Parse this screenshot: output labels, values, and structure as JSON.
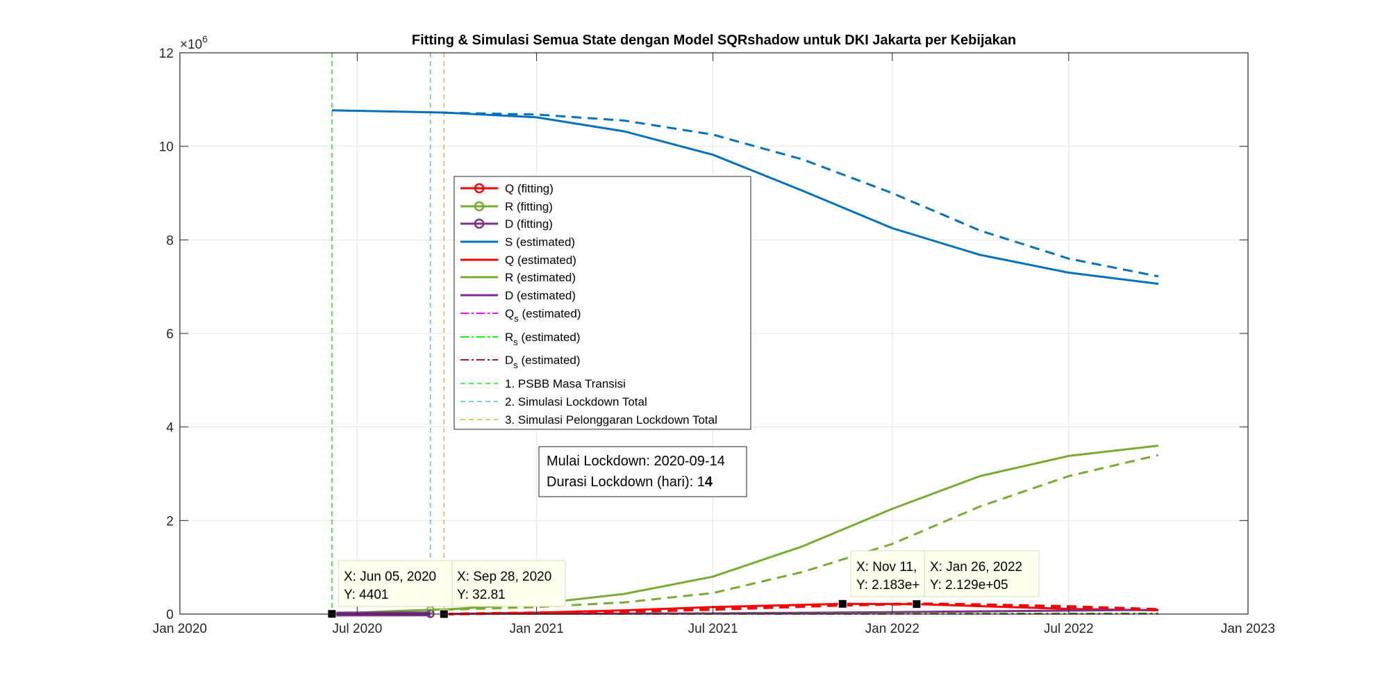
{
  "chart_data": {
    "type": "line",
    "title": "Fitting & Simulasi Semua State dengan Model SQRshadow untuk DKI Jakarta per Kebijakan",
    "xlabel": "",
    "ylabel": "",
    "y_exponent_label": "×10",
    "y_exponent_power": "6",
    "xlim": [
      "2020-01-01",
      "2023-01-01"
    ],
    "ylim": [
      0,
      12
    ],
    "y_scale_factor": 1000000,
    "grid": true,
    "legend_position": "center-left",
    "x_ticks": [
      {
        "date": "2020-01-01",
        "label": "Jan 2020"
      },
      {
        "date": "2020-07-01",
        "label": "Jul 2020"
      },
      {
        "date": "2021-01-01",
        "label": "Jan 2021"
      },
      {
        "date": "2021-07-01",
        "label": "Jul 2021"
      },
      {
        "date": "2022-01-01",
        "label": "Jan 2022"
      },
      {
        "date": "2022-07-01",
        "label": "Jul 2022"
      },
      {
        "date": "2023-01-01",
        "label": "Jan 2023"
      }
    ],
    "y_ticks": [
      {
        "value": 0,
        "label": "0"
      },
      {
        "value": 2,
        "label": "2"
      },
      {
        "value": 4,
        "label": "4"
      },
      {
        "value": 6,
        "label": "6"
      },
      {
        "value": 8,
        "label": "8"
      },
      {
        "value": 10,
        "label": "10"
      },
      {
        "value": 12,
        "label": "12"
      }
    ],
    "series": [
      {
        "name": "Q (fitting)",
        "color": "#ff0000",
        "style": "solid",
        "marker": "o",
        "width": 3,
        "points": [
          [
            "2020-06-05",
            0.0044
          ],
          [
            "2020-07-01",
            0.006
          ],
          [
            "2020-08-01",
            0.008
          ],
          [
            "2020-09-14",
            0.01
          ]
        ]
      },
      {
        "name": "R (fitting)",
        "color": "#77ac30",
        "style": "solid",
        "marker": "o",
        "width": 3,
        "points": [
          [
            "2020-06-05",
            0.01
          ],
          [
            "2020-07-01",
            0.03
          ],
          [
            "2020-08-01",
            0.06
          ],
          [
            "2020-09-14",
            0.09
          ]
        ]
      },
      {
        "name": "D (fitting)",
        "color": "#7e2f8e",
        "style": "solid",
        "marker": "o",
        "width": 7,
        "points": [
          [
            "2020-06-05",
            0.0
          ],
          [
            "2020-07-01",
            0.001
          ],
          [
            "2020-08-01",
            0.002
          ],
          [
            "2020-09-14",
            0.003
          ]
        ]
      },
      {
        "name": "S (estimated)",
        "color": "#0072bd",
        "style": "solid",
        "width": 3,
        "points": [
          [
            "2020-06-05",
            10.77
          ],
          [
            "2020-10-01",
            10.72
          ],
          [
            "2021-01-01",
            10.62
          ],
          [
            "2021-04-01",
            10.32
          ],
          [
            "2021-07-01",
            9.82
          ],
          [
            "2021-10-01",
            9.05
          ],
          [
            "2022-01-01",
            8.25
          ],
          [
            "2022-04-01",
            7.68
          ],
          [
            "2022-07-01",
            7.3
          ],
          [
            "2022-10-01",
            7.06
          ]
        ]
      },
      {
        "name": "Q (estimated)",
        "color": "#ff0000",
        "style": "solid",
        "width": 3,
        "points": [
          [
            "2020-09-28",
            0.0
          ],
          [
            "2021-01-01",
            0.03
          ],
          [
            "2021-04-01",
            0.08
          ],
          [
            "2021-07-01",
            0.15
          ],
          [
            "2021-11-11",
            0.2183
          ],
          [
            "2022-01-26",
            0.2129
          ],
          [
            "2022-04-01",
            0.17
          ],
          [
            "2022-07-01",
            0.11
          ],
          [
            "2022-10-01",
            0.08
          ]
        ]
      },
      {
        "name": "R (estimated)",
        "color": "#77ac30",
        "style": "solid",
        "width": 3,
        "points": [
          [
            "2020-09-14",
            0.09
          ],
          [
            "2020-10-01",
            0.1
          ],
          [
            "2021-01-01",
            0.22
          ],
          [
            "2021-04-01",
            0.43
          ],
          [
            "2021-07-01",
            0.8
          ],
          [
            "2021-10-01",
            1.45
          ],
          [
            "2022-01-01",
            2.25
          ],
          [
            "2022-04-01",
            2.95
          ],
          [
            "2022-07-01",
            3.38
          ],
          [
            "2022-10-01",
            3.6
          ]
        ]
      },
      {
        "name": "D (estimated)",
        "color": "#7e2f8e",
        "style": "solid",
        "width": 3,
        "points": [
          [
            "2020-09-28",
            0.003
          ],
          [
            "2021-07-01",
            0.015
          ],
          [
            "2022-01-01",
            0.04
          ],
          [
            "2022-10-01",
            0.09
          ]
        ]
      },
      {
        "name": "Q_s (estimated)",
        "color": "#ff00ff",
        "style": "dashdot",
        "width": 2,
        "points": [
          [
            "2020-09-28",
            0.0
          ],
          [
            "2022-10-01",
            0.01
          ]
        ]
      },
      {
        "name": "R_s (estimated)",
        "color": "#00ff00",
        "style": "dashdot",
        "width": 2,
        "points": [
          [
            "2020-09-28",
            0.0
          ],
          [
            "2022-10-01",
            0.02
          ]
        ]
      },
      {
        "name": "D_s (estimated)",
        "color": "#a2142f",
        "style": "dashdot",
        "width": 2,
        "points": [
          [
            "2020-09-28",
            0.0
          ],
          [
            "2022-10-01",
            0.005
          ]
        ]
      },
      {
        "name": "S (dashed)",
        "legend": false,
        "color": "#0072bd",
        "style": "dash",
        "width": 3,
        "points": [
          [
            "2020-09-28",
            10.72
          ],
          [
            "2021-01-01",
            10.68
          ],
          [
            "2021-04-01",
            10.55
          ],
          [
            "2021-07-01",
            10.25
          ],
          [
            "2021-10-01",
            9.72
          ],
          [
            "2022-01-01",
            9.0
          ],
          [
            "2022-04-01",
            8.2
          ],
          [
            "2022-07-01",
            7.6
          ],
          [
            "2022-10-01",
            7.22
          ]
        ]
      },
      {
        "name": "R (dashed)",
        "legend": false,
        "color": "#77ac30",
        "style": "dash",
        "width": 3,
        "points": [
          [
            "2020-09-28",
            0.09
          ],
          [
            "2021-01-01",
            0.15
          ],
          [
            "2021-04-01",
            0.25
          ],
          [
            "2021-07-01",
            0.45
          ],
          [
            "2021-10-01",
            0.9
          ],
          [
            "2022-01-01",
            1.5
          ],
          [
            "2022-04-01",
            2.3
          ],
          [
            "2022-07-01",
            2.95
          ],
          [
            "2022-10-01",
            3.4
          ]
        ]
      },
      {
        "name": "Q (dashed)",
        "legend": false,
        "color": "#ff0000",
        "style": "dash",
        "width": 4,
        "points": [
          [
            "2020-09-28",
            0.0
          ],
          [
            "2021-04-01",
            0.05
          ],
          [
            "2021-07-01",
            0.1
          ],
          [
            "2021-11-11",
            0.19
          ],
          [
            "2022-01-26",
            0.22
          ],
          [
            "2022-04-01",
            0.2
          ],
          [
            "2022-07-01",
            0.16
          ],
          [
            "2022-10-01",
            0.1
          ]
        ]
      }
    ],
    "policy_lines": [
      {
        "name": "1. PSBB Masa Transisi",
        "date": "2020-06-05",
        "color": "#00ff00"
      },
      {
        "name": "2. Simulasi Lockdown Total",
        "date": "2020-09-14",
        "color": "#4dbeee"
      },
      {
        "name": "3. Simulasi Pelonggaran Lockdown Total",
        "date": "2020-09-28",
        "color": "#edb120"
      }
    ],
    "markers": [
      {
        "date": "2020-06-05",
        "value": 0.0044
      },
      {
        "date": "2020-09-28",
        "value": 3.28e-05
      },
      {
        "date": "2021-11-11",
        "value": 0.2183
      },
      {
        "date": "2022-01-26",
        "value": 0.2129
      }
    ],
    "datatips": [
      {
        "name": "datatip-jun-2020",
        "x_text": "X: Jun 05, 2020",
        "y_text": "Y: 4401"
      },
      {
        "name": "datatip-sep-2020",
        "x_text": "X: Sep 28, 2020",
        "y_text": "Y: 32.81"
      },
      {
        "name": "datatip-nov-2021",
        "x_text": "X: Nov 11,",
        "y_text": "Y: 2.183e+"
      },
      {
        "name": "datatip-jan-2022",
        "x_text": "X: Jan 26, 2022",
        "y_text": "Y: 2.129e+05"
      }
    ],
    "annotation": {
      "line1": "Mulai Lockdown: 2020-09-14",
      "line2_prefix": "Durasi Lockdown (hari): 1",
      "line2_bold": "4"
    }
  }
}
